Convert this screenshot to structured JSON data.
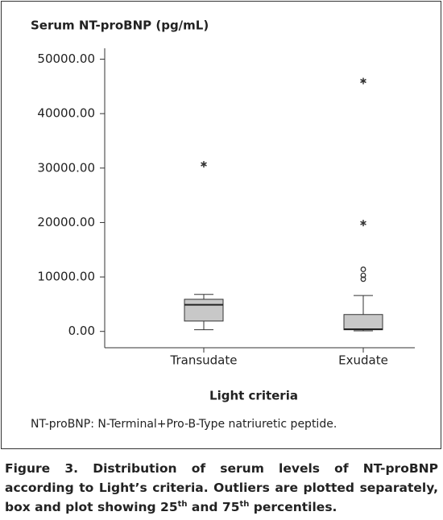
{
  "chart_data": {
    "type": "box",
    "title": "Serum NT-proBNP (pg/mL)",
    "x_label": "Light criteria",
    "footnote": "NT-proBNP: N-Terminal+Pro-B-Type natriuretic peptide.",
    "categories": [
      "Transudate",
      "Exudate"
    ],
    "color": "#c8c8c8",
    "boxes": [
      {
        "whisker_low": 300,
        "q1": 1900,
        "median": 4900,
        "q3": 5900,
        "whisker_high": 6800,
        "outliers": [
          30700
        ],
        "outlier_markers": [
          "star"
        ]
      },
      {
        "whisker_low": 100,
        "q1": 300,
        "median": 400,
        "q3": 3100,
        "whisker_high": 6600,
        "outliers": [
          9600,
          10300,
          11400,
          19900,
          46000
        ],
        "outlier_markers": [
          "circle",
          "circle",
          "circle",
          "star",
          "star"
        ]
      }
    ],
    "ylim": [
      -3000,
      52000
    ],
    "yticks": [
      {
        "value": 0,
        "label": "0.00"
      },
      {
        "value": 10000,
        "label": "10000.00"
      },
      {
        "value": 20000,
        "label": "20000.00"
      },
      {
        "value": 30000,
        "label": "30000.00"
      },
      {
        "value": 40000,
        "label": "40000.00"
      },
      {
        "value": 50000,
        "label": "50000.00"
      }
    ]
  },
  "caption": [
    "Figure 3. Distribution of serum levels of NT-proBNP according to Light’s criteria. Outliers are plotted separately, box and plot showing 25",
    "th",
    " and 75",
    "th",
    " percentiles."
  ]
}
